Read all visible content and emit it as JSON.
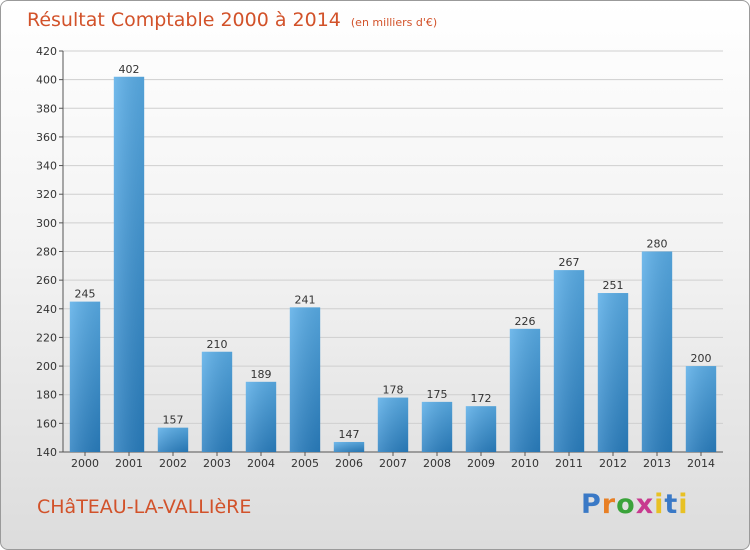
{
  "title": "Résultat Comptable 2000 à 2014",
  "unit_note": "(en milliers d'€)",
  "commune": "CHâTEAU-LA-VALLIèRE",
  "logo_text": "Proxiti",
  "colors": {
    "accent": "#d2522a",
    "bar": "#3b8ed0",
    "logo": [
      "#3a79c6",
      "#e87f24",
      "#3aa33a",
      "#c83a8f",
      "#e8c124",
      "#3a79c6",
      "#e8c124"
    ]
  },
  "chart_data": {
    "type": "bar",
    "title": "Résultat Comptable 2000 à 2014",
    "subtitle": "(en milliers d'€)",
    "xlabel": "",
    "ylabel": "",
    "categories": [
      "2000",
      "2001",
      "2002",
      "2003",
      "2004",
      "2005",
      "2006",
      "2007",
      "2008",
      "2009",
      "2010",
      "2011",
      "2012",
      "2013",
      "2014"
    ],
    "values": [
      245,
      402,
      157,
      210,
      189,
      241,
      147,
      178,
      175,
      172,
      226,
      267,
      251,
      280,
      200
    ],
    "ylim": [
      140,
      420
    ],
    "yticks": [
      140,
      160,
      180,
      200,
      220,
      240,
      260,
      280,
      300,
      320,
      340,
      360,
      380,
      400,
      420
    ],
    "grid": true,
    "legend": "none"
  }
}
